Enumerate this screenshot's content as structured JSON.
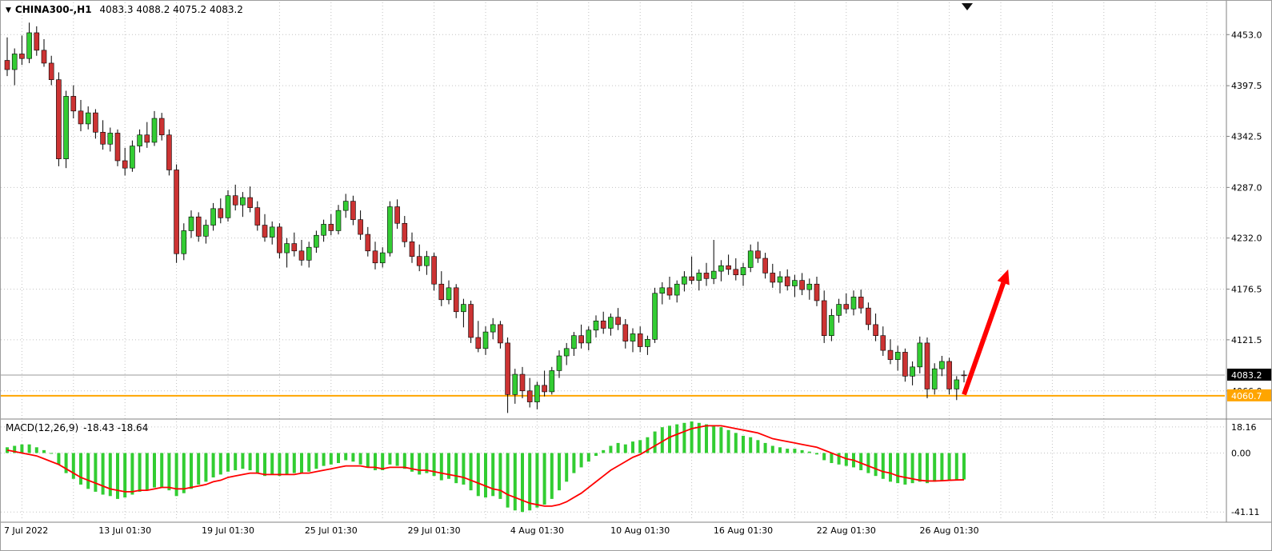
{
  "header": {
    "symbol": "CHINA300-,H1",
    "ohlc": "4083.3 4088.2 4075.2 4083.2"
  },
  "icons": {
    "symbol_dropdown": "▼",
    "shift_marker": "chart-shift-triangle"
  },
  "colors": {
    "background": "#ffffff",
    "grid": "#c2c2c2",
    "bull": "#33cc33",
    "bear": "#cc3333",
    "wick": "#000000",
    "candle_outline": "#000000",
    "macd_hist": "#32cd32",
    "macd_signal": "#ff0000",
    "orange_line": "#ffa500",
    "price_line": "#999999",
    "arrow": "#ff0000",
    "separator": "#808080",
    "text": "#000000"
  },
  "price_axis": {
    "current_badge": {
      "value": "4083.2",
      "bg": "#000000",
      "fg": "#ffffff"
    },
    "orange_badge": {
      "value": "4060.7",
      "bg": "#ffa500",
      "fg": "#ffffff"
    }
  },
  "macd_panel": {
    "label": "MACD(12,26,9)",
    "values": "-18.43 -18.64"
  },
  "time_axis": {
    "labels": [
      {
        "text": "7 Jul 2022",
        "index": 2
      },
      {
        "text": "13 Jul 01:30",
        "index": 16
      },
      {
        "text": "19 Jul 01:30",
        "index": 30
      },
      {
        "text": "25 Jul 01:30",
        "index": 44
      },
      {
        "text": "29 Jul 01:30",
        "index": 58
      },
      {
        "text": "4 Aug 01:30",
        "index": 72
      },
      {
        "text": "10 Aug 01:30",
        "index": 86
      },
      {
        "text": "16 Aug 01:30",
        "index": 100
      },
      {
        "text": "22 Aug 01:30",
        "index": 114
      },
      {
        "text": "26 Aug 01:30",
        "index": 128
      }
    ]
  },
  "annotations": {
    "arrow": {
      "type": "trend-arrow-up",
      "color": "#ff0000",
      "from_index": 130,
      "from_price": 4062,
      "to_index": 136,
      "to_price": 4198
    },
    "orange_hline": {
      "price": 4060.7,
      "color": "#ffa500"
    }
  },
  "chart_data": [
    {
      "type": "candlestick",
      "title": "CHINA300-,H1",
      "ylim": [
        4038,
        4468
      ],
      "yticks": [
        4453.0,
        4397.5,
        4342.5,
        4287.0,
        4232.0,
        4176.5,
        4121.5,
        4066.0
      ],
      "ytick_labels": [
        "4453.0",
        "4397.5",
        "4342.5",
        "4287.0",
        "4232.0",
        "4176.5",
        "4121.5",
        "4066.0"
      ],
      "current_price": 4083.2,
      "support_line": 4060.7,
      "time_labels": [
        "7 Jul 2022",
        "13 Jul 01:30",
        "19 Jul 01:30",
        "25 Jul 01:30",
        "29 Jul 01:30",
        "4 Aug 01:30",
        "10 Aug 01:30",
        "16 Aug 01:30",
        "22 Aug 01:30",
        "26 Aug 01:30"
      ],
      "candles": [
        [
          4425,
          4450,
          4408,
          4415
        ],
        [
          4415,
          4438,
          4398,
          4432
        ],
        [
          4432,
          4452,
          4420,
          4427
        ],
        [
          4427,
          4466,
          4422,
          4455
        ],
        [
          4455,
          4462,
          4430,
          4436
        ],
        [
          4436,
          4448,
          4418,
          4422
        ],
        [
          4422,
          4430,
          4398,
          4404
        ],
        [
          4404,
          4412,
          4310,
          4318
        ],
        [
          4318,
          4392,
          4308,
          4386
        ],
        [
          4386,
          4398,
          4362,
          4370
        ],
        [
          4370,
          4382,
          4348,
          4356
        ],
        [
          4356,
          4375,
          4350,
          4368
        ],
        [
          4368,
          4372,
          4340,
          4347
        ],
        [
          4347,
          4360,
          4328,
          4334
        ],
        [
          4334,
          4352,
          4326,
          4346
        ],
        [
          4346,
          4350,
          4310,
          4316
        ],
        [
          4316,
          4330,
          4300,
          4308
        ],
        [
          4308,
          4338,
          4304,
          4332
        ],
        [
          4332,
          4350,
          4325,
          4344
        ],
        [
          4344,
          4358,
          4330,
          4336
        ],
        [
          4336,
          4370,
          4332,
          4362
        ],
        [
          4362,
          4368,
          4338,
          4344
        ],
        [
          4344,
          4350,
          4300,
          4306
        ],
        [
          4306,
          4312,
          4205,
          4215
        ],
        [
          4215,
          4248,
          4208,
          4240
        ],
        [
          4240,
          4262,
          4232,
          4255
        ],
        [
          4255,
          4260,
          4228,
          4234
        ],
        [
          4234,
          4252,
          4226,
          4246
        ],
        [
          4246,
          4270,
          4240,
          4264
        ],
        [
          4264,
          4275,
          4248,
          4254
        ],
        [
          4254,
          4284,
          4250,
          4278
        ],
        [
          4278,
          4290,
          4262,
          4268
        ],
        [
          4268,
          4282,
          4255,
          4276
        ],
        [
          4276,
          4288,
          4260,
          4265
        ],
        [
          4265,
          4272,
          4240,
          4246
        ],
        [
          4246,
          4258,
          4228,
          4233
        ],
        [
          4233,
          4250,
          4225,
          4244
        ],
        [
          4244,
          4248,
          4210,
          4216
        ],
        [
          4216,
          4232,
          4200,
          4226
        ],
        [
          4226,
          4238,
          4212,
          4218
        ],
        [
          4218,
          4230,
          4202,
          4208
        ],
        [
          4208,
          4228,
          4200,
          4222
        ],
        [
          4222,
          4240,
          4216,
          4235
        ],
        [
          4235,
          4252,
          4228,
          4247
        ],
        [
          4247,
          4258,
          4235,
          4240
        ],
        [
          4240,
          4268,
          4236,
          4262
        ],
        [
          4262,
          4280,
          4254,
          4272
        ],
        [
          4272,
          4278,
          4246,
          4252
        ],
        [
          4252,
          4262,
          4230,
          4236
        ],
        [
          4236,
          4244,
          4212,
          4218
        ],
        [
          4218,
          4228,
          4198,
          4205
        ],
        [
          4205,
          4222,
          4200,
          4216
        ],
        [
          4216,
          4272,
          4212,
          4266
        ],
        [
          4266,
          4274,
          4242,
          4248
        ],
        [
          4248,
          4256,
          4222,
          4228
        ],
        [
          4228,
          4238,
          4205,
          4212
        ],
        [
          4212,
          4225,
          4196,
          4202
        ],
        [
          4202,
          4218,
          4192,
          4212
        ],
        [
          4212,
          4216,
          4175,
          4182
        ],
        [
          4182,
          4196,
          4158,
          4165
        ],
        [
          4165,
          4186,
          4160,
          4178
        ],
        [
          4178,
          4182,
          4145,
          4152
        ],
        [
          4152,
          4166,
          4135,
          4160
        ],
        [
          4160,
          4164,
          4118,
          4124
        ],
        [
          4124,
          4142,
          4108,
          4112
        ],
        [
          4112,
          4136,
          4105,
          4130
        ],
        [
          4130,
          4145,
          4122,
          4138
        ],
        [
          4138,
          4142,
          4112,
          4118
        ],
        [
          4118,
          4124,
          4042,
          4062
        ],
        [
          4062,
          4090,
          4052,
          4084
        ],
        [
          4084,
          4092,
          4058,
          4066
        ],
        [
          4066,
          4080,
          4048,
          4054
        ],
        [
          4054,
          4076,
          4046,
          4072
        ],
        [
          4072,
          4088,
          4060,
          4065
        ],
        [
          4065,
          4092,
          4062,
          4088
        ],
        [
          4088,
          4110,
          4080,
          4104
        ],
        [
          4104,
          4118,
          4094,
          4112
        ],
        [
          4112,
          4130,
          4104,
          4126
        ],
        [
          4126,
          4138,
          4112,
          4118
        ],
        [
          4118,
          4136,
          4110,
          4132
        ],
        [
          4132,
          4148,
          4124,
          4142
        ],
        [
          4142,
          4152,
          4128,
          4134
        ],
        [
          4134,
          4150,
          4126,
          4146
        ],
        [
          4146,
          4156,
          4132,
          4138
        ],
        [
          4138,
          4144,
          4112,
          4120
        ],
        [
          4120,
          4134,
          4108,
          4128
        ],
        [
          4128,
          4136,
          4108,
          4114
        ],
        [
          4114,
          4126,
          4105,
          4122
        ],
        [
          4122,
          4178,
          4118,
          4172
        ],
        [
          4172,
          4184,
          4160,
          4178
        ],
        [
          4178,
          4190,
          4165,
          4170
        ],
        [
          4170,
          4186,
          4162,
          4182
        ],
        [
          4182,
          4196,
          4174,
          4190
        ],
        [
          4190,
          4212,
          4182,
          4186
        ],
        [
          4186,
          4198,
          4175,
          4194
        ],
        [
          4194,
          4205,
          4180,
          4188
        ],
        [
          4188,
          4230,
          4182,
          4196
        ],
        [
          4196,
          4208,
          4185,
          4202
        ],
        [
          4202,
          4214,
          4192,
          4198
        ],
        [
          4198,
          4210,
          4186,
          4192
        ],
        [
          4192,
          4205,
          4180,
          4200
        ],
        [
          4200,
          4225,
          4195,
          4218
        ],
        [
          4218,
          4228,
          4205,
          4210
        ],
        [
          4210,
          4216,
          4188,
          4194
        ],
        [
          4194,
          4204,
          4178,
          4184
        ],
        [
          4184,
          4196,
          4172,
          4190
        ],
        [
          4190,
          4198,
          4175,
          4180
        ],
        [
          4180,
          4192,
          4168,
          4186
        ],
        [
          4186,
          4194,
          4170,
          4176
        ],
        [
          4176,
          4188,
          4165,
          4182
        ],
        [
          4182,
          4190,
          4158,
          4164
        ],
        [
          4164,
          4175,
          4118,
          4126
        ],
        [
          4126,
          4155,
          4120,
          4148
        ],
        [
          4148,
          4166,
          4140,
          4160
        ],
        [
          4160,
          4172,
          4150,
          4155
        ],
        [
          4155,
          4175,
          4148,
          4168
        ],
        [
          4168,
          4176,
          4150,
          4156
        ],
        [
          4156,
          4162,
          4132,
          4138
        ],
        [
          4138,
          4150,
          4120,
          4126
        ],
        [
          4126,
          4136,
          4104,
          4110
        ],
        [
          4110,
          4122,
          4095,
          4100
        ],
        [
          4100,
          4115,
          4088,
          4108
        ],
        [
          4108,
          4112,
          4076,
          4082
        ],
        [
          4082,
          4098,
          4072,
          4092
        ],
        [
          4092,
          4125,
          4085,
          4118
        ],
        [
          4118,
          4124,
          4058,
          4068
        ],
        [
          4068,
          4096,
          4062,
          4090
        ],
        [
          4090,
          4104,
          4082,
          4098
        ],
        [
          4098,
          4102,
          4062,
          4068
        ],
        [
          4068,
          4082,
          4056,
          4078
        ],
        [
          4083.3,
          4088.2,
          4075.2,
          4083.2
        ]
      ]
    },
    {
      "type": "macd",
      "title": "MACD(12,26,9)",
      "ylim": [
        -46,
        22
      ],
      "yticks": [
        18.16,
        0,
        -41.11
      ],
      "ytick_labels": [
        "18.16",
        "0.00",
        "-41.11"
      ],
      "current_values": [
        -18.43,
        -18.64
      ],
      "histogram": [
        4,
        5,
        6,
        6,
        4,
        2,
        0,
        -8,
        -14,
        -18,
        -22,
        -25,
        -27,
        -29,
        -30,
        -32,
        -31,
        -29,
        -27,
        -26,
        -24,
        -24,
        -26,
        -30,
        -28,
        -25,
        -22,
        -20,
        -17,
        -15,
        -13,
        -12,
        -11,
        -12,
        -14,
        -16,
        -15,
        -16,
        -15,
        -14,
        -14,
        -13,
        -11,
        -9,
        -8,
        -7,
        -5,
        -6,
        -8,
        -10,
        -12,
        -12,
        -8,
        -9,
        -11,
        -13,
        -15,
        -14,
        -16,
        -19,
        -18,
        -21,
        -22,
        -26,
        -30,
        -31,
        -30,
        -32,
        -38,
        -40,
        -41.11,
        -40,
        -38,
        -36,
        -32,
        -26,
        -20,
        -14,
        -10,
        -6,
        -2,
        2,
        5,
        7,
        6,
        8,
        9,
        11,
        15,
        18,
        19,
        20,
        21,
        22,
        21,
        20,
        19,
        18,
        16,
        14,
        12,
        11,
        9,
        7,
        5,
        4,
        3,
        3,
        2,
        1,
        -1,
        -5,
        -7,
        -8,
        -9,
        -10,
        -12,
        -14,
        -16,
        -18,
        -20,
        -21,
        -22,
        -21,
        -20,
        -21,
        -20,
        -19,
        -19,
        -19,
        -18.43
      ],
      "signal": [
        2,
        1,
        0,
        -1,
        -2,
        -4,
        -6,
        -8,
        -11,
        -14,
        -17,
        -19,
        -21,
        -23,
        -25,
        -26,
        -27,
        -27,
        -26,
        -26,
        -25,
        -24,
        -24,
        -25,
        -25,
        -24,
        -23,
        -22,
        -20,
        -19,
        -17,
        -16,
        -15,
        -14,
        -14,
        -15,
        -15,
        -15,
        -15,
        -15,
        -14,
        -14,
        -13,
        -12,
        -11,
        -10,
        -9,
        -9,
        -9,
        -10,
        -10,
        -11,
        -10,
        -10,
        -10,
        -11,
        -12,
        -12,
        -13,
        -14,
        -15,
        -16,
        -17,
        -19,
        -21,
        -23,
        -25,
        -26,
        -29,
        -31,
        -33,
        -35,
        -36,
        -37,
        -37,
        -36,
        -34,
        -31,
        -28,
        -24,
        -20,
        -16,
        -12,
        -9,
        -6,
        -3,
        -1,
        2,
        5,
        8,
        11,
        13,
        15,
        17,
        18,
        19,
        19,
        19,
        18,
        17,
        16,
        15,
        14,
        12,
        10,
        9,
        8,
        7,
        6,
        5,
        4,
        2,
        0,
        -2,
        -4,
        -5,
        -7,
        -9,
        -11,
        -13,
        -14,
        -16,
        -17,
        -18,
        -19,
        -19.5,
        -19.5,
        -19.3,
        -19,
        -18.8,
        -18.64
      ]
    }
  ]
}
